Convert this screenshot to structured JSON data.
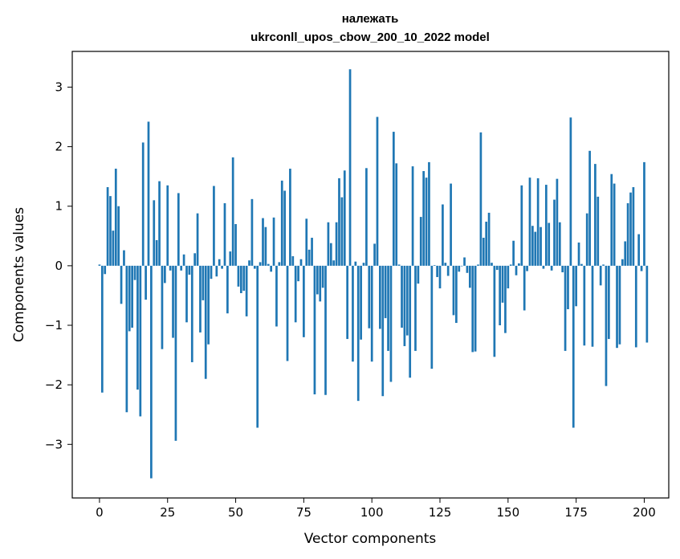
{
  "chart_data": {
    "type": "bar",
    "title_line1": "належать",
    "title_line2": "ukrconll_upos_cbow_200_10_2022 model",
    "xlabel": "Vector components",
    "ylabel": "Components values",
    "xlim": [
      -10,
      209
    ],
    "ylim": [
      -3.9,
      3.6
    ],
    "xticks": [
      0,
      25,
      50,
      75,
      100,
      125,
      150,
      175,
      200
    ],
    "xtick_labels": [
      "0",
      "25",
      "50",
      "75",
      "100",
      "125",
      "150",
      "175",
      "200"
    ],
    "yticks": [
      -3,
      -2,
      -1,
      0,
      1,
      2,
      3
    ],
    "ytick_labels": [
      "−3",
      "−2",
      "−1",
      "0",
      "1",
      "2",
      "3"
    ],
    "grid": false,
    "bar_color": "#1f77b4",
    "values": [
      0.02,
      -2.13,
      -0.14,
      1.32,
      1.17,
      0.59,
      1.63,
      1.0,
      -0.64,
      0.26,
      -2.46,
      -1.1,
      -1.04,
      -0.24,
      -2.08,
      -2.53,
      2.07,
      -0.57,
      2.42,
      -3.57,
      1.1,
      0.43,
      1.42,
      -1.4,
      -0.29,
      1.35,
      -0.08,
      -1.21,
      -2.94,
      1.22,
      -0.08,
      0.19,
      -0.95,
      -0.15,
      -1.62,
      0.21,
      0.88,
      -1.12,
      -0.58,
      -1.9,
      -1.32,
      -0.22,
      1.34,
      -0.18,
      0.11,
      -0.05,
      1.05,
      -0.8,
      0.24,
      1.82,
      0.7,
      -0.35,
      -0.46,
      -0.42,
      -0.85,
      0.09,
      1.12,
      -0.05,
      -2.72,
      0.06,
      0.8,
      0.65,
      0.03,
      -0.1,
      0.81,
      -1.02,
      0.06,
      1.43,
      1.26,
      -1.6,
      1.63,
      0.16,
      -0.95,
      -0.26,
      0.11,
      -1.2,
      0.79,
      0.27,
      0.47,
      -2.16,
      -0.48,
      -0.6,
      -0.37,
      -2.17,
      0.73,
      0.38,
      0.09,
      0.73,
      1.47,
      1.15,
      1.6,
      -1.23,
      3.3,
      -1.61,
      0.07,
      -2.27,
      -1.24,
      0.05,
      1.64,
      -1.05,
      -1.61,
      0.37,
      2.5,
      -1.06,
      -2.19,
      -0.88,
      -1.43,
      -1.95,
      2.25,
      1.72,
      0.02,
      -1.04,
      -1.35,
      -1.17,
      -1.88,
      1.67,
      -1.43,
      -0.3,
      0.82,
      1.59,
      1.48,
      1.74,
      -1.73,
      0.01,
      -0.19,
      -0.38,
      1.03,
      0.05,
      -0.17,
      1.38,
      -0.83,
      -0.96,
      -0.1,
      0.0,
      0.14,
      -0.12,
      -0.37,
      -1.45,
      -1.44,
      0.02,
      2.24,
      0.47,
      0.74,
      0.89,
      0.05,
      -1.53,
      -0.07,
      -1.0,
      -0.62,
      -1.13,
      -0.38,
      0.02,
      0.42,
      -0.16,
      0.04,
      1.35,
      -0.75,
      -0.09,
      1.48,
      0.67,
      0.57,
      1.47,
      0.65,
      -0.05,
      1.36,
      0.72,
      -0.08,
      1.11,
      1.46,
      0.73,
      -0.11,
      -1.43,
      -0.73,
      2.49,
      -2.72,
      -0.68,
      0.39,
      0.03,
      -1.34,
      0.88,
      1.93,
      -1.36,
      1.71,
      1.16,
      -0.33,
      0.02,
      -2.02,
      -1.23,
      1.54,
      1.38,
      -1.38,
      -1.32,
      0.11,
      0.41,
      1.05,
      1.23,
      1.32,
      -1.37,
      0.53,
      -0.09,
      1.74,
      -1.29
    ]
  }
}
